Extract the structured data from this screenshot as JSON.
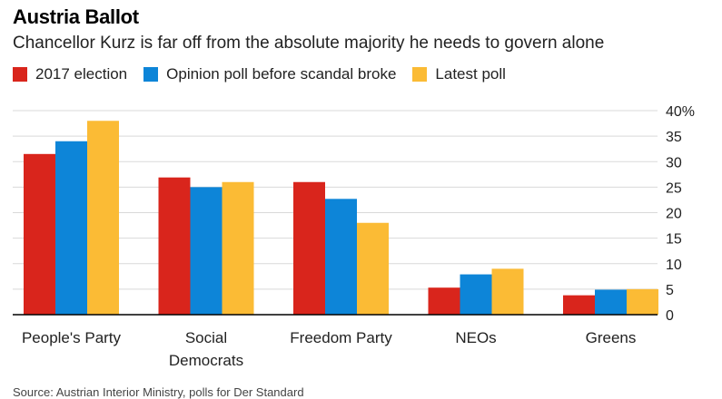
{
  "title": "Austria Ballot",
  "subtitle": "Chancellor Kurz is far off from the absolute majority he needs to govern alone",
  "source": "Source: Austrian Interior Ministry, polls for Der Standard",
  "colors": {
    "election_2017": "#d9251c",
    "poll_before": "#0d85d8",
    "latest": "#fbbb35",
    "grid": "#d9d9d9",
    "axis": "#000000"
  },
  "chart_data": {
    "type": "bar",
    "categories": [
      "People's Party",
      "Social Democrats",
      "Freedom Party",
      "NEOs",
      "Greens"
    ],
    "category_label_lines": [
      [
        "People's Party"
      ],
      [
        "Social",
        "Democrats"
      ],
      [
        "Freedom Party"
      ],
      [
        "NEOs"
      ],
      [
        "Greens"
      ]
    ],
    "series": [
      {
        "name": "2017 election",
        "values": [
          31.5,
          26.9,
          26.0,
          5.3,
          3.8
        ]
      },
      {
        "name": "Opinion poll before scandal broke",
        "values": [
          34.0,
          25.0,
          22.7,
          7.9,
          4.9
        ]
      },
      {
        "name": "Latest poll",
        "values": [
          38.0,
          26.0,
          18.0,
          9.0,
          5.0
        ]
      }
    ],
    "ylim": [
      0,
      40
    ],
    "yticks": [
      0,
      5,
      10,
      15,
      20,
      25,
      30,
      35,
      40
    ],
    "ytick_labels": [
      "0",
      "5",
      "10",
      "15",
      "20",
      "25",
      "30",
      "35",
      "40%"
    ],
    "grid": true,
    "legend_position": "top-left",
    "y_axis_side": "right"
  }
}
